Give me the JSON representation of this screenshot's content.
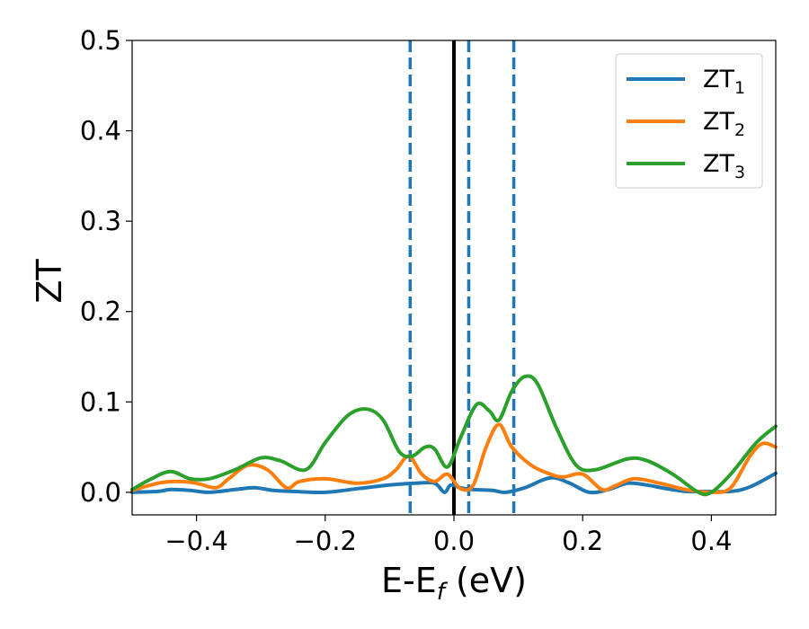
{
  "chart_data": {
    "type": "line",
    "xlabel": {
      "main": "E-E",
      "sub": "f",
      "suffix": " (eV)"
    },
    "ylabel": "ZT",
    "xlim": [
      -0.5,
      0.5
    ],
    "ylim": [
      -0.025,
      0.5
    ],
    "xticks": [
      -0.4,
      -0.2,
      0.0,
      0.2,
      0.4
    ],
    "xtick_labels": [
      "−0.4",
      "−0.2",
      "0.0",
      "0.2",
      "0.4"
    ],
    "yticks": [
      0.0,
      0.1,
      0.2,
      0.3,
      0.4,
      0.5
    ],
    "ytick_labels": [
      "0.0",
      "0.1",
      "0.2",
      "0.3",
      "0.4",
      "0.5"
    ],
    "legend_placement": "top-right",
    "vlines": [
      {
        "x": 0.0,
        "style": "solid",
        "color": "#000000"
      },
      {
        "x": -0.068,
        "style": "dashed",
        "color": "#1f77b4"
      },
      {
        "x": 0.023,
        "style": "dashed",
        "color": "#1f77b4"
      },
      {
        "x": 0.093,
        "style": "dashed",
        "color": "#1f77b4"
      }
    ],
    "series": [
      {
        "name": "ZT",
        "name_sub": "1",
        "color": "#1f77b4",
        "points": [
          [
            -0.5,
            0.0
          ],
          [
            -0.46,
            0.001
          ],
          [
            -0.44,
            0.003
          ],
          [
            -0.41,
            0.002
          ],
          [
            -0.38,
            0.0
          ],
          [
            -0.34,
            0.003
          ],
          [
            -0.31,
            0.005
          ],
          [
            -0.28,
            0.002
          ],
          [
            -0.25,
            0.001
          ],
          [
            -0.2,
            0.0
          ],
          [
            -0.15,
            0.004
          ],
          [
            -0.1,
            0.008
          ],
          [
            -0.06,
            0.01
          ],
          [
            -0.03,
            0.01
          ],
          [
            -0.015,
            0.0
          ],
          [
            -0.005,
            0.008
          ],
          [
            0.01,
            0.005
          ],
          [
            0.03,
            0.003
          ],
          [
            0.06,
            0.002
          ],
          [
            0.08,
            0.0
          ],
          [
            0.11,
            0.005
          ],
          [
            0.15,
            0.016
          ],
          [
            0.18,
            0.01
          ],
          [
            0.21,
            0.0
          ],
          [
            0.24,
            0.003
          ],
          [
            0.27,
            0.01
          ],
          [
            0.3,
            0.008
          ],
          [
            0.33,
            0.004
          ],
          [
            0.36,
            0.001
          ],
          [
            0.39,
            0.001
          ],
          [
            0.43,
            0.001
          ],
          [
            0.46,
            0.006
          ],
          [
            0.5,
            0.021
          ]
        ]
      },
      {
        "name": "ZT",
        "name_sub": "2",
        "color": "#ff7f0e",
        "points": [
          [
            -0.5,
            0.002
          ],
          [
            -0.46,
            0.01
          ],
          [
            -0.43,
            0.012
          ],
          [
            -0.4,
            0.01
          ],
          [
            -0.37,
            0.005
          ],
          [
            -0.35,
            0.015
          ],
          [
            -0.32,
            0.03
          ],
          [
            -0.29,
            0.025
          ],
          [
            -0.26,
            0.005
          ],
          [
            -0.24,
            0.012
          ],
          [
            -0.2,
            0.015
          ],
          [
            -0.15,
            0.01
          ],
          [
            -0.11,
            0.015
          ],
          [
            -0.09,
            0.025
          ],
          [
            -0.07,
            0.04
          ],
          [
            -0.05,
            0.02
          ],
          [
            -0.03,
            0.012
          ],
          [
            -0.01,
            0.02
          ],
          [
            0.01,
            0.004
          ],
          [
            0.03,
            0.008
          ],
          [
            0.05,
            0.05
          ],
          [
            0.07,
            0.075
          ],
          [
            0.09,
            0.05
          ],
          [
            0.12,
            0.03
          ],
          [
            0.15,
            0.02
          ],
          [
            0.17,
            0.017
          ],
          [
            0.2,
            0.02
          ],
          [
            0.23,
            0.003
          ],
          [
            0.25,
            0.007
          ],
          [
            0.28,
            0.015
          ],
          [
            0.32,
            0.01
          ],
          [
            0.36,
            0.003
          ],
          [
            0.4,
            0.0
          ],
          [
            0.43,
            0.005
          ],
          [
            0.46,
            0.04
          ],
          [
            0.48,
            0.054
          ],
          [
            0.5,
            0.05
          ]
        ]
      },
      {
        "name": "ZT",
        "name_sub": "3",
        "color": "#2ca02c",
        "points": [
          [
            -0.5,
            0.003
          ],
          [
            -0.47,
            0.015
          ],
          [
            -0.44,
            0.023
          ],
          [
            -0.41,
            0.015
          ],
          [
            -0.38,
            0.015
          ],
          [
            -0.34,
            0.025
          ],
          [
            -0.3,
            0.038
          ],
          [
            -0.27,
            0.035
          ],
          [
            -0.23,
            0.025
          ],
          [
            -0.2,
            0.055
          ],
          [
            -0.165,
            0.085
          ],
          [
            -0.135,
            0.092
          ],
          [
            -0.11,
            0.08
          ],
          [
            -0.085,
            0.045
          ],
          [
            -0.065,
            0.04
          ],
          [
            -0.045,
            0.05
          ],
          [
            -0.03,
            0.048
          ],
          [
            -0.01,
            0.028
          ],
          [
            0.01,
            0.06
          ],
          [
            0.035,
            0.097
          ],
          [
            0.055,
            0.09
          ],
          [
            0.07,
            0.08
          ],
          [
            0.09,
            0.112
          ],
          [
            0.11,
            0.128
          ],
          [
            0.13,
            0.12
          ],
          [
            0.16,
            0.07
          ],
          [
            0.19,
            0.03
          ],
          [
            0.22,
            0.025
          ],
          [
            0.27,
            0.037
          ],
          [
            0.3,
            0.035
          ],
          [
            0.34,
            0.02
          ],
          [
            0.38,
            0.0
          ],
          [
            0.4,
            0.0
          ],
          [
            0.43,
            0.02
          ],
          [
            0.47,
            0.055
          ],
          [
            0.5,
            0.073
          ]
        ]
      }
    ]
  }
}
